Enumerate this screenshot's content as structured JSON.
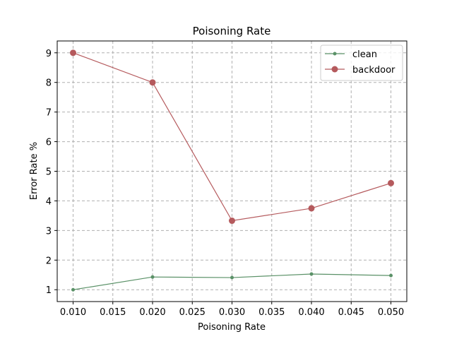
{
  "chart_data": {
    "type": "line",
    "title": "Poisoning Rate",
    "xlabel": "Poisoning Rate",
    "ylabel": "Error Rate %",
    "x": [
      0.01,
      0.02,
      0.03,
      0.04,
      0.05
    ],
    "xlim": [
      0.008,
      0.052
    ],
    "ylim": [
      0.6,
      9.4
    ],
    "xticks": [
      0.01,
      0.015,
      0.02,
      0.025,
      0.03,
      0.035,
      0.04,
      0.045,
      0.05
    ],
    "xtick_labels": [
      "0.010",
      "0.015",
      "0.020",
      "0.025",
      "0.030",
      "0.035",
      "0.040",
      "0.045",
      "0.050"
    ],
    "yticks": [
      1,
      2,
      3,
      4,
      5,
      6,
      7,
      8,
      9
    ],
    "ytick_labels": [
      "1",
      "2",
      "3",
      "4",
      "5",
      "6",
      "7",
      "8",
      "9"
    ],
    "grid": true,
    "legend_position": "top-right",
    "series": [
      {
        "name": "clean",
        "color": "#5a9167",
        "marker": "small-dot",
        "values": [
          1.0,
          1.43,
          1.41,
          1.53,
          1.48
        ]
      },
      {
        "name": "backdoor",
        "color": "#b55a5d",
        "marker": "large-dot",
        "values": [
          9.0,
          8.0,
          3.33,
          3.75,
          4.6
        ]
      }
    ]
  }
}
